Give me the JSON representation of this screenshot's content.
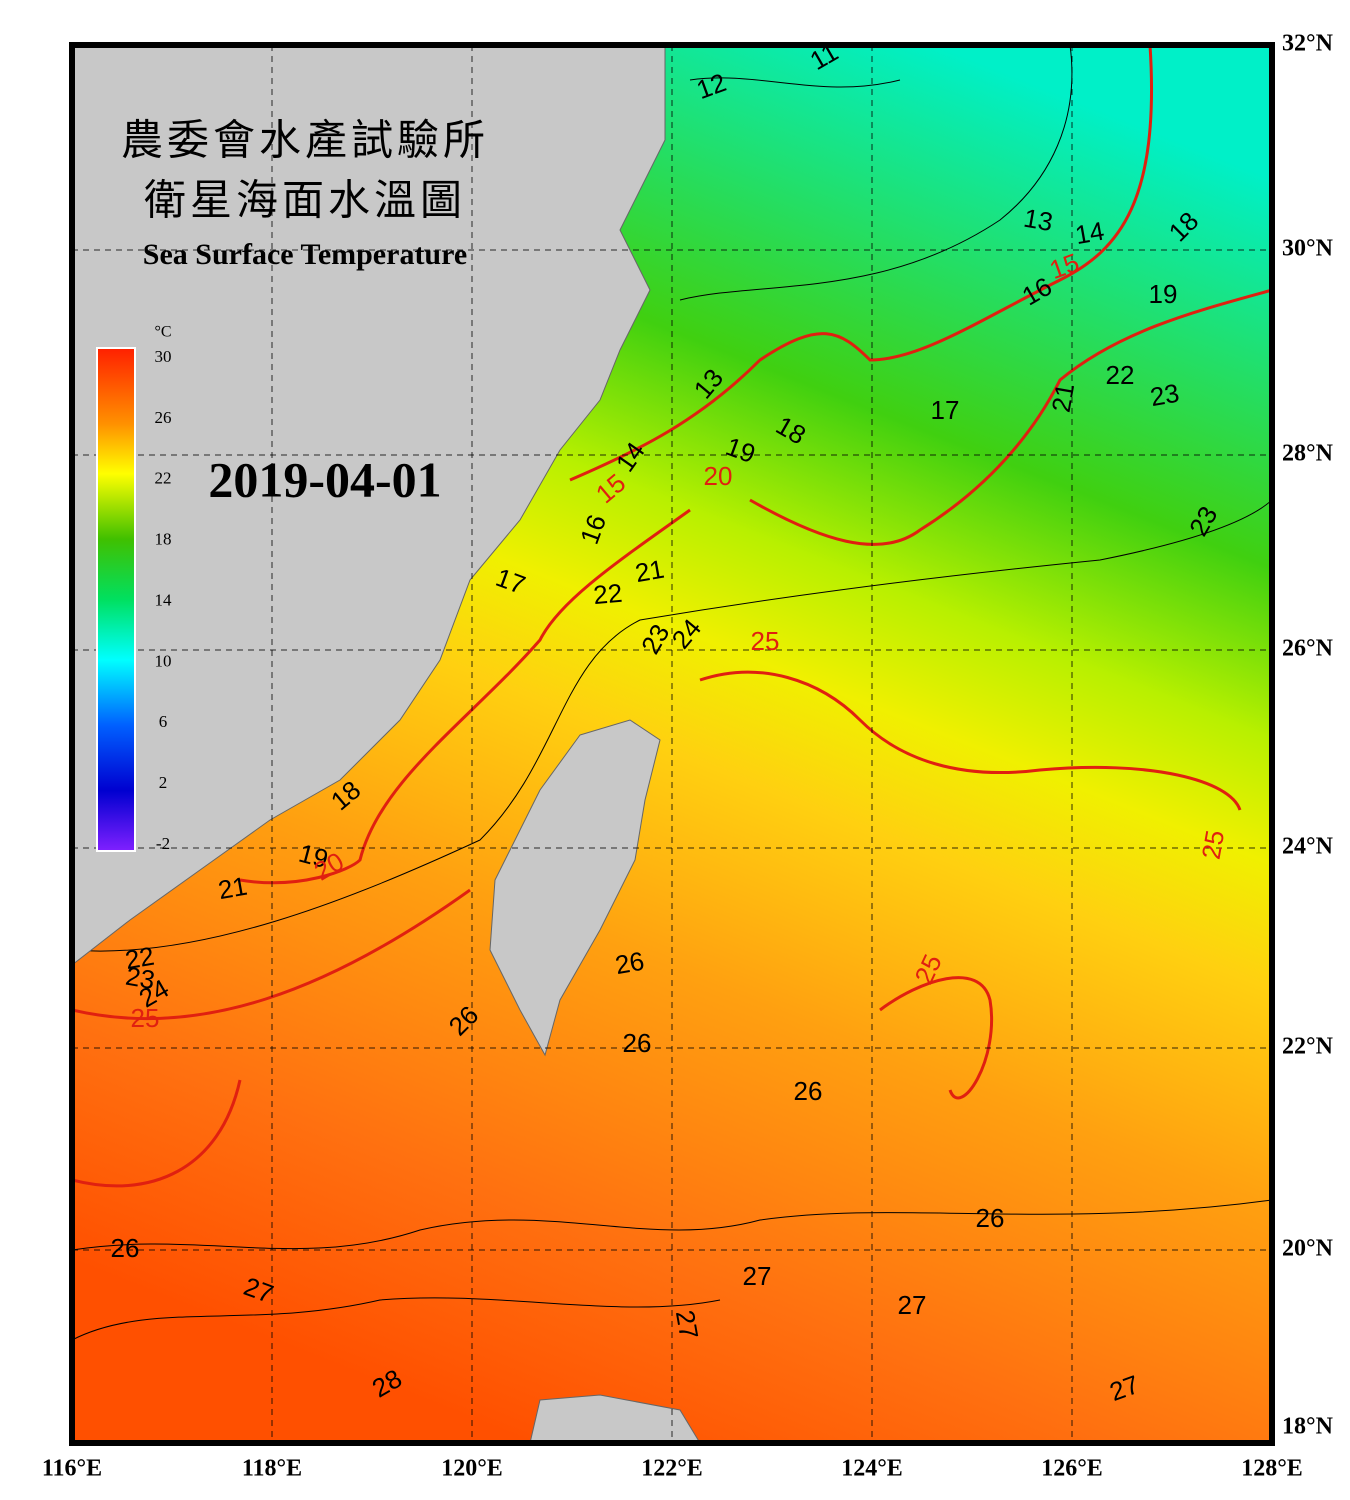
{
  "title_zh": [
    "農委會水產試驗所",
    "衛星海面水溫圖"
  ],
  "title_en": "Sea Surface Temperature",
  "date": "2019-04-01",
  "colorbar": {
    "unit": "°C",
    "ticks": [
      30,
      26,
      22,
      18,
      14,
      10,
      6,
      2,
      -2
    ]
  },
  "lon_labels": [
    "116°E",
    "118°E",
    "120°E",
    "122°E",
    "124°E",
    "126°E",
    "128°E"
  ],
  "lat_labels": [
    "32°N",
    "30°N",
    "28°N",
    "26°N",
    "24°N",
    "22°N",
    "20°N",
    "18°N"
  ],
  "contour_labels": [
    11,
    12,
    13,
    14,
    15,
    16,
    18,
    19,
    22,
    23,
    21,
    17,
    18,
    19,
    20,
    13,
    14,
    15,
    16,
    17,
    21,
    22,
    23,
    24,
    25,
    23,
    18,
    19,
    20,
    21,
    22,
    23,
    24,
    25,
    26,
    26,
    26,
    25,
    25,
    26,
    26,
    26,
    27,
    27,
    27,
    27,
    28,
    27
  ]
}
